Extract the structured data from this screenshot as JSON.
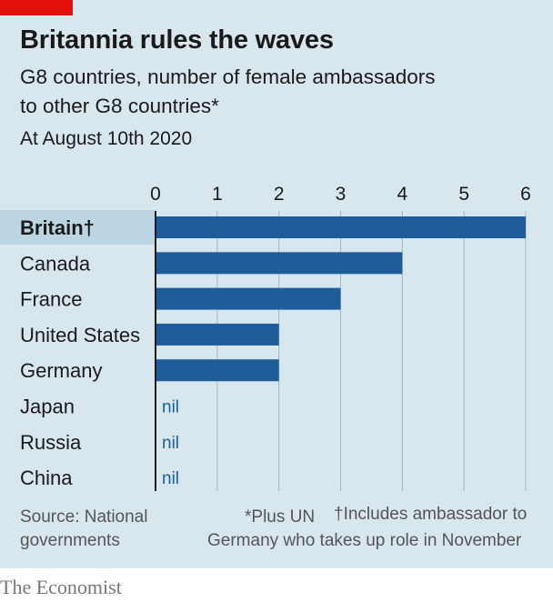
{
  "header": {
    "title": "Britannia rules the waves",
    "subtitle_line1": "G8 countries, number of female ambassadors",
    "subtitle_line2": "to other G8 countries*",
    "date_note": "At August 10th 2020"
  },
  "chart_data": {
    "type": "bar",
    "orientation": "horizontal",
    "title": "Britannia rules the waves",
    "subtitle": "G8 countries, number of female ambassadors to other G8 countries*",
    "categories": [
      "Britain†",
      "Canada",
      "France",
      "United States",
      "Germany",
      "Japan",
      "Russia",
      "China"
    ],
    "values": [
      6,
      4,
      3,
      2,
      2,
      0,
      0,
      0
    ],
    "value_labels": [
      "",
      "",
      "",
      "",
      "",
      "nil",
      "nil",
      "nil"
    ],
    "highlight_category": "Britain†",
    "xlim": [
      0,
      6
    ],
    "x_ticks": [
      "0",
      "1",
      "2",
      "3",
      "4",
      "5",
      "6"
    ],
    "grid": true,
    "axis_position": "top",
    "bar_color": "#1f5c99",
    "highlight_color": "#bcd5e3"
  },
  "footer": {
    "source_line1": "Source: National",
    "source_line2": "governments",
    "note_star": "*Plus UN",
    "note_dagger_line1": "†Includes ambassador to",
    "note_dagger_line2": "Germany who takes up role in November",
    "brand": "The Economist"
  },
  "colors": {
    "background": "#d8e6ee",
    "accent_red": "#e3120b",
    "bar": "#1f5c99",
    "highlight": "#bcd5e3",
    "grid": "#9fb6c4"
  }
}
